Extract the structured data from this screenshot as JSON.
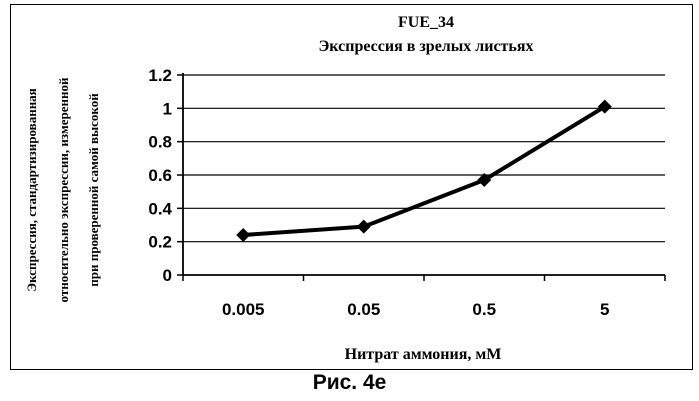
{
  "chart_data": {
    "type": "line",
    "title": [
      "FUE_34",
      "Экспрессия в зрелых листьях"
    ],
    "xlabel": "Нитрат аммония, мМ",
    "ylabel": [
      "Экспрессия, стандартизированная",
      "относительно экспрессии, измеренной",
      "при проверенной самой высокой"
    ],
    "categories": [
      "0.005",
      "0.05",
      "0.5",
      "5"
    ],
    "series": [
      {
        "values": [
          0.24,
          0.29,
          0.57,
          1.01
        ]
      }
    ],
    "ylim": [
      0,
      1.2
    ],
    "yticks": [
      "0",
      "0.2",
      "0.4",
      "0.6",
      "0.8",
      "1",
      "1.2"
    ],
    "grid": true,
    "legend": "none",
    "marker": "diamond",
    "line_color": "#000000"
  },
  "caption": "Рис. 4е"
}
